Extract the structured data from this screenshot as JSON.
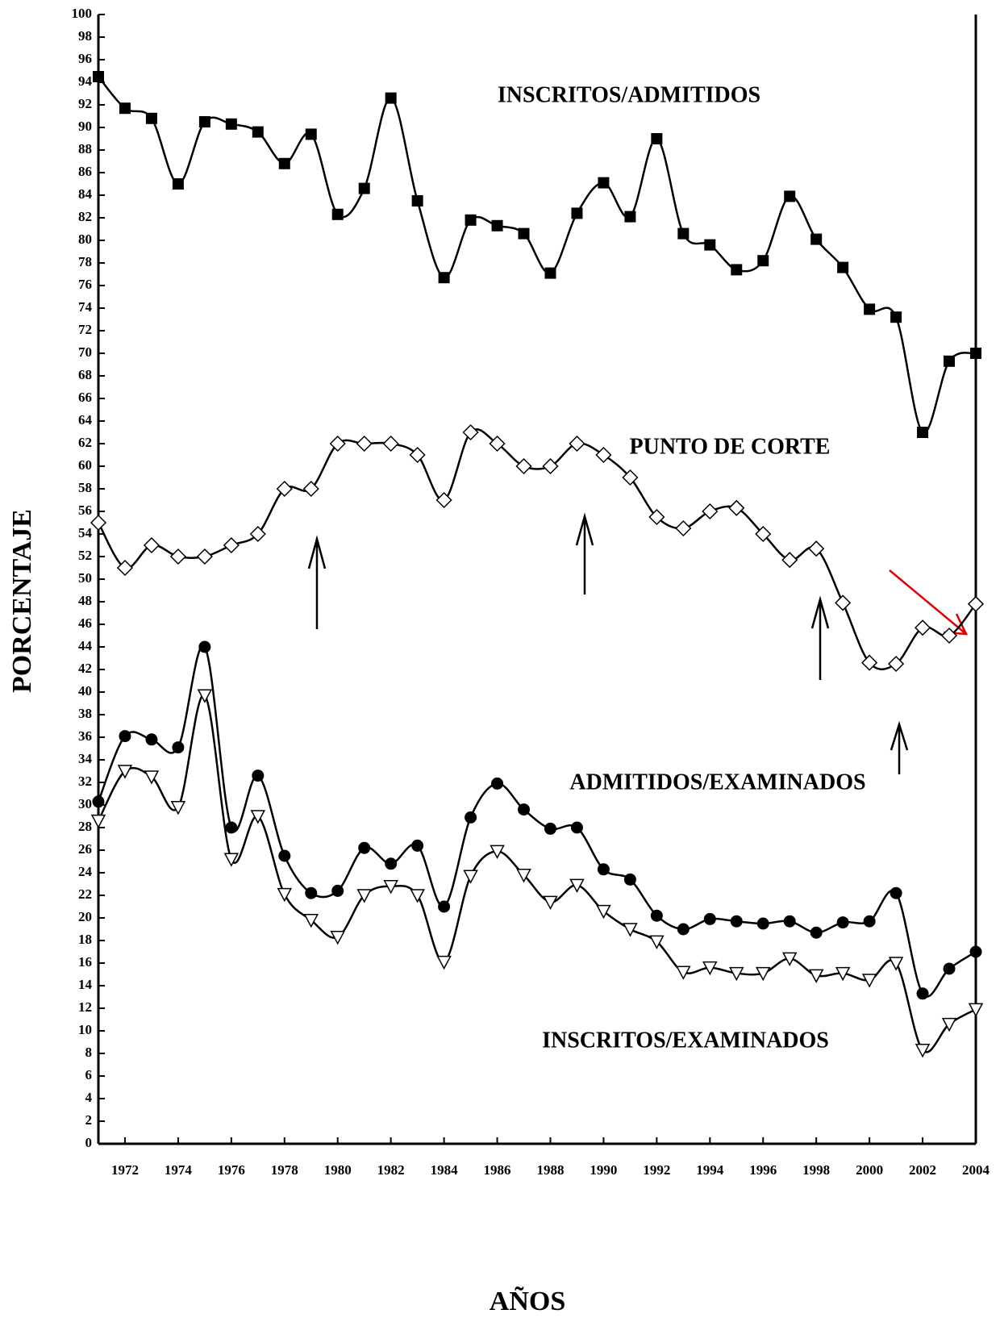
{
  "chart_data": {
    "type": "line",
    "x_label": "AÑOS",
    "y_label": "PORCENTAJE",
    "x": [
      1971,
      1972,
      1973,
      1974,
      1975,
      1976,
      1977,
      1978,
      1979,
      1980,
      1981,
      1982,
      1983,
      1984,
      1985,
      1986,
      1987,
      1988,
      1989,
      1990,
      1991,
      1992,
      1993,
      1994,
      1995,
      1996,
      1997,
      1998,
      1999,
      2000,
      2001,
      2002,
      2003,
      2004
    ],
    "xlim": [
      1971,
      2004
    ],
    "xticks": [
      1972,
      1974,
      1976,
      1978,
      1980,
      1982,
      1984,
      1986,
      1988,
      1990,
      1992,
      1994,
      1996,
      1998,
      2000,
      2002,
      2004
    ],
    "ylim": [
      0,
      100
    ],
    "yticks": [
      0,
      2,
      4,
      6,
      8,
      10,
      12,
      14,
      16,
      18,
      20,
      22,
      24,
      26,
      28,
      30,
      32,
      34,
      36,
      38,
      40,
      42,
      44,
      46,
      48,
      50,
      52,
      54,
      56,
      58,
      60,
      62,
      64,
      66,
      68,
      70,
      72,
      74,
      76,
      78,
      80,
      82,
      84,
      86,
      88,
      90,
      92,
      94,
      96,
      98,
      100
    ],
    "series": [
      {
        "name": "INSCRITOS/ADMITIDOS",
        "color": "#000000",
        "marker": "square",
        "values": [
          94.5,
          91.7,
          90.8,
          85,
          90.5,
          90.3,
          89.6,
          86.8,
          89.4,
          82.3,
          84.6,
          92.6,
          83.5,
          76.7,
          81.8,
          81.3,
          80.6,
          77.1,
          82.4,
          85.1,
          82.1,
          89,
          80.6,
          79.6,
          77.4,
          78.2,
          83.9,
          80.1,
          77.6,
          73.9,
          73.2,
          63,
          69.3,
          70
        ]
      },
      {
        "name": "PUNTO DE CORTE",
        "color": "#000000",
        "marker": "diamond",
        "values": [
          55,
          51,
          53,
          52,
          52,
          53,
          54,
          58,
          58,
          62,
          62,
          62,
          61,
          57,
          63,
          62,
          60,
          60,
          62,
          61,
          59,
          55.5,
          54.5,
          56,
          56.3,
          54,
          51.7,
          52.7,
          47.9,
          42.6,
          42.5,
          45.7,
          45,
          47.8
        ]
      },
      {
        "name": "ADMITIDOS/EXAMINADOS",
        "color": "#000000",
        "marker": "circle",
        "values": [
          30.3,
          36.1,
          35.8,
          35.1,
          44,
          28,
          32.6,
          25.5,
          22.2,
          22.4,
          26.2,
          24.8,
          26.4,
          21,
          28.9,
          31.9,
          29.6,
          27.9,
          28,
          24.3,
          23.4,
          20.2,
          19,
          19.9,
          19.7,
          19.5,
          19.7,
          18.7,
          19.6,
          19.7,
          22.2,
          13.3,
          15.5,
          17
        ]
      },
      {
        "name": "INSCRITOS/EXAMINADOS",
        "color": "#000000",
        "marker": "triangle-down",
        "values": [
          28.6,
          33,
          32.5,
          29.8,
          39.7,
          25.2,
          29,
          22.1,
          19.8,
          18.3,
          22,
          22.8,
          22,
          16.1,
          23.7,
          25.9,
          23.8,
          21.4,
          22.9,
          20.6,
          19,
          17.9,
          15.2,
          15.6,
          15.1,
          15.1,
          16.4,
          14.9,
          15.1,
          14.5,
          16,
          8.3,
          10.6,
          11.9
        ]
      }
    ]
  }
}
